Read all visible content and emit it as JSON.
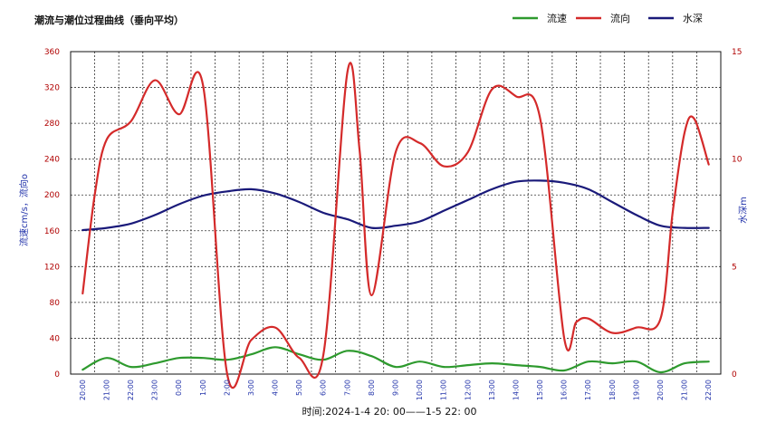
{
  "chart_data": {
    "type": "line",
    "title": "潮流与潮位过程曲线（垂向平均）",
    "xlabel": "时间:2024-1-4  20: 00——1-5  22: 00",
    "ylabel_left": "流速cm/s，流向o",
    "ylabel_right": "水深m",
    "ylim_left": [
      0,
      360
    ],
    "ylim_right": [
      0,
      15
    ],
    "yticks_left": [
      0,
      40,
      80,
      120,
      160,
      200,
      240,
      280,
      320,
      360
    ],
    "yticks_right": [
      0,
      5,
      10,
      15
    ],
    "grid": true,
    "legend_position": "top-right",
    "categories": [
      "20:00",
      "21:00",
      "22:00",
      "23:00",
      "0:00",
      "1:00",
      "2:00",
      "3:00",
      "4:00",
      "5:00",
      "6:00",
      "7:00",
      "8:00",
      "9:00",
      "10:00",
      "11:00",
      "12:00",
      "13:00",
      "14:00",
      "15:00",
      "16:00",
      "17:00",
      "18:00",
      "19:00",
      "20:00",
      "21:00",
      "22:00"
    ],
    "series": [
      {
        "name": "流速",
        "color": "#2e9a2e",
        "axis": "left",
        "x": [
          0,
          1,
          2,
          3,
          4,
          5,
          6,
          7,
          8,
          9,
          10,
          11,
          12,
          13,
          14,
          15,
          16,
          17,
          18,
          19,
          20,
          21,
          22,
          23,
          24,
          25,
          26
        ],
        "values": [
          5,
          18,
          8,
          12,
          18,
          18,
          16,
          22,
          30,
          22,
          16,
          26,
          20,
          8,
          14,
          8,
          10,
          12,
          10,
          8,
          4,
          14,
          12,
          14,
          2,
          12,
          14
        ]
      },
      {
        "name": "流向",
        "color": "#d42a2a",
        "axis": "left",
        "x": [
          0,
          0.5,
          1,
          2,
          3,
          4,
          5,
          6,
          7,
          8,
          9,
          10,
          11,
          11.5,
          12,
          13,
          14,
          15,
          16,
          17,
          18,
          19,
          20,
          20.5,
          21,
          22,
          23,
          24,
          24.5,
          25,
          25.4,
          26
        ],
        "values": [
          90,
          200,
          262,
          282,
          328,
          290,
          322,
          0,
          38,
          52,
          18,
          22,
          338,
          250,
          88,
          248,
          258,
          232,
          248,
          318,
          310,
          285,
          40,
          58,
          62,
          46,
          52,
          62,
          180,
          270,
          285,
          234
        ]
      },
      {
        "name": "水深",
        "color": "#1a1a7a",
        "axis": "right",
        "x": [
          0,
          1,
          2,
          3,
          4,
          5,
          6,
          7,
          8,
          9,
          10,
          11,
          12,
          13,
          14,
          15,
          16,
          17,
          18,
          19,
          20,
          21,
          22,
          23,
          24,
          25,
          26
        ],
        "values": [
          6.7,
          6.8,
          7.0,
          7.4,
          7.9,
          8.3,
          8.5,
          8.6,
          8.4,
          8.0,
          7.5,
          7.2,
          6.8,
          6.9,
          7.1,
          7.6,
          8.1,
          8.6,
          8.95,
          9.0,
          8.9,
          8.6,
          8.0,
          7.4,
          6.9,
          6.8,
          6.8
        ]
      }
    ]
  }
}
